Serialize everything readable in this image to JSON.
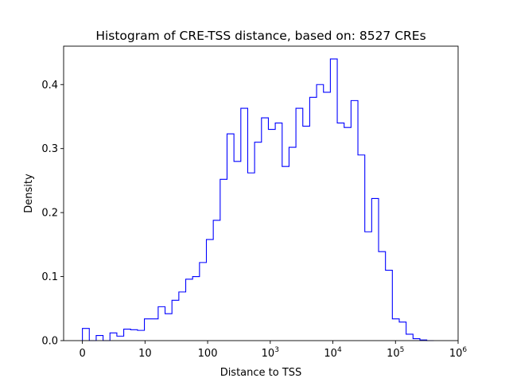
{
  "chart_data": {
    "type": "histogram",
    "title": "Histogram of CRE-TSS distance, based on: 8527 CREs",
    "xlabel": "Distance to TSS",
    "ylabel": "Density",
    "x_scale": "log10(distance+1)",
    "xlim": [
      -0.3,
      6
    ],
    "ylim": [
      0,
      0.46
    ],
    "grid": false,
    "legend": "none",
    "line_color": "#0000ff",
    "x_ticks": [
      {
        "value": 0,
        "label": "0"
      },
      {
        "value": 1,
        "label": "10"
      },
      {
        "value": 2,
        "label": "100"
      },
      {
        "value": 3,
        "base": "10",
        "exp": "3"
      },
      {
        "value": 4,
        "base": "10",
        "exp": "4"
      },
      {
        "value": 5,
        "base": "10",
        "exp": "5"
      },
      {
        "value": 6,
        "base": "10",
        "exp": "6"
      }
    ],
    "y_ticks": [
      {
        "value": 0.0,
        "label": "0.0"
      },
      {
        "value": 0.1,
        "label": "0.1"
      },
      {
        "value": 0.2,
        "label": "0.2"
      },
      {
        "value": 0.3,
        "label": "0.3"
      },
      {
        "value": 0.4,
        "label": "0.4"
      }
    ],
    "bin_edges": [
      0,
      0.11,
      0.22,
      0.33,
      0.44,
      0.55,
      0.66,
      0.77,
      0.88,
      0.99,
      1.1,
      1.21,
      1.32,
      1.43,
      1.54,
      1.65,
      1.76,
      1.87,
      1.98,
      2.09,
      2.2,
      2.31,
      2.42,
      2.53,
      2.64,
      2.75,
      2.86,
      2.97,
      3.08,
      3.19,
      3.3,
      3.41,
      3.52,
      3.63,
      3.74,
      3.85,
      3.96,
      4.07,
      4.18,
      4.29,
      4.4,
      4.51,
      4.62,
      4.73,
      4.84,
      4.95,
      5.06,
      5.17,
      5.28,
      5.39,
      5.5,
      5.61
    ],
    "densities": [
      0.019,
      0,
      0.008,
      0,
      0.012,
      0.007,
      0.018,
      0.017,
      0.016,
      0.034,
      0.034,
      0.053,
      0.042,
      0.063,
      0.076,
      0.096,
      0.1,
      0.122,
      0.158,
      0.188,
      0.252,
      0.323,
      0.28,
      0.363,
      0.262,
      0.31,
      0.348,
      0.33,
      0.34,
      0.272,
      0.302,
      0.363,
      0.335,
      0.38,
      0.4,
      0.388,
      0.44,
      0.34,
      0.333,
      0.375,
      0.29,
      0.17,
      0.222,
      0.139,
      0.11,
      0.034,
      0.029,
      0.01,
      0.003,
      0.001,
      0
    ]
  }
}
